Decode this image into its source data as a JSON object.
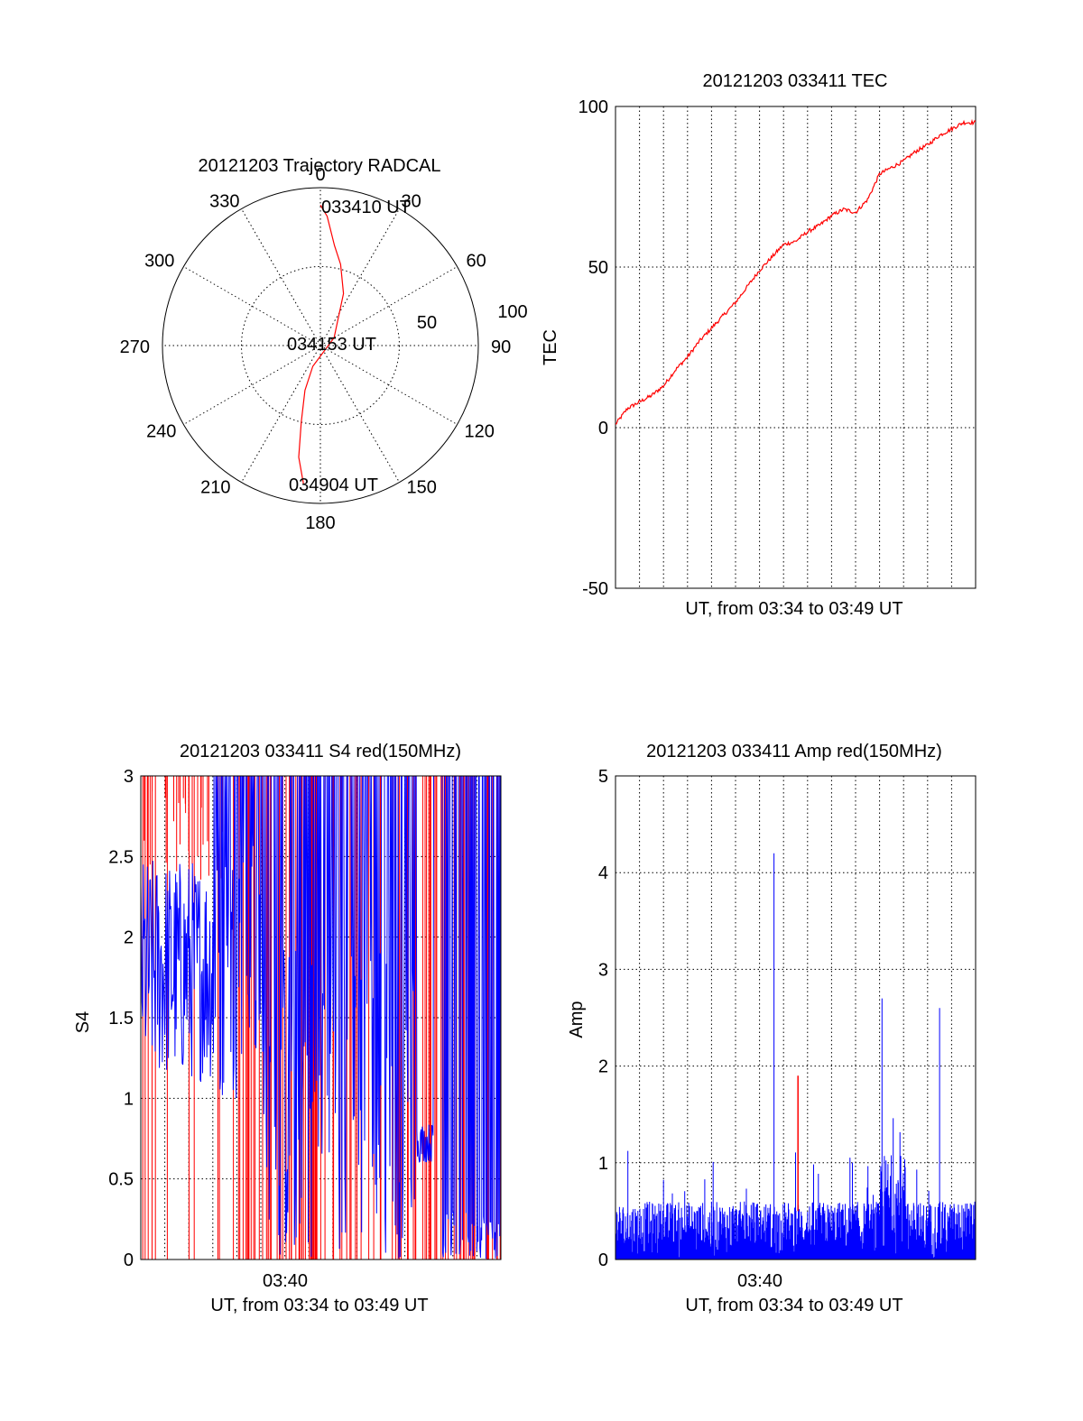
{
  "colors": {
    "trace_red": "#ff0000",
    "trace_blue": "#0000ff",
    "axis": "#000000"
  },
  "chart_data": [
    {
      "type": "polar",
      "title": "20121203 Trajectory RADCAL",
      "azimuth_labels": [
        "0",
        "30",
        "60",
        "90",
        "120",
        "150",
        "180",
        "210",
        "240",
        "270",
        "300",
        "330"
      ],
      "radial_labels": [
        "50",
        "100"
      ],
      "radial_range": [
        0,
        100
      ],
      "series": [
        {
          "color": "#ff0000",
          "points_az_dist": [
            [
              0,
              89
            ],
            [
              3,
              82
            ],
            [
              8,
              64
            ],
            [
              14,
              53
            ],
            [
              24,
              36
            ],
            [
              60,
              10
            ],
            [
              200,
              14
            ],
            [
              199,
              30
            ],
            [
              194,
              50
            ],
            [
              191,
              72
            ],
            [
              187,
              88
            ]
          ]
        }
      ],
      "annotations": [
        "033410 UT",
        "034153 UT",
        "034904 UT"
      ]
    },
    {
      "type": "line",
      "title": "20121203 033411 TEC",
      "xlabel": "UT, from 03:34 to 03:49 UT",
      "ylabel": "TEC",
      "xlim": [
        0,
        15
      ],
      "ylim": [
        -50,
        100
      ],
      "yticks": [
        "100",
        "50",
        "0",
        "-50"
      ],
      "grid": true,
      "series": [
        {
          "color": "#ff0000",
          "x": [
            0,
            0.5,
            1,
            1.5,
            2,
            2.5,
            3,
            3.5,
            4,
            4.5,
            5,
            5.5,
            6,
            6.5,
            7,
            7.5,
            8,
            8.5,
            9,
            9.5,
            10,
            10.5,
            11,
            11.5,
            12,
            12.5,
            13,
            13.5,
            14,
            14.5,
            15
          ],
          "y": [
            1,
            6,
            8,
            10,
            13,
            18,
            22,
            27,
            31,
            35,
            39,
            44,
            49,
            53,
            57,
            58,
            61,
            63,
            66,
            68,
            67,
            71,
            79,
            81,
            83,
            86,
            88,
            91,
            93,
            95,
            95
          ]
        }
      ]
    },
    {
      "type": "line",
      "title": "20121203 033411 S4 red(150MHz)",
      "xlabel": "UT, from 03:34 to 03:49 UT",
      "ylabel": "S4",
      "xlim": [
        0,
        15
      ],
      "ylim": [
        0,
        3
      ],
      "xticks": [
        "03:40"
      ],
      "yticks": [
        "3",
        "2.5",
        "2",
        "1.5",
        "1",
        "0.5",
        "0"
      ],
      "grid": true,
      "series": [
        {
          "color": "#ff0000",
          "x": [
            0,
            15
          ],
          "y": [
            3,
            0
          ]
        },
        {
          "color": "#0000ff",
          "x": [
            0,
            15
          ],
          "y": [
            1.5,
            0.7
          ]
        }
      ]
    },
    {
      "type": "line",
      "title": "20121203 033411 Amp red(150MHz)",
      "xlabel": "UT, from 03:34 to 03:49 UT",
      "ylabel": "Amp",
      "xlim": [
        0,
        15
      ],
      "ylim": [
        0,
        5
      ],
      "xticks": [
        "03:40"
      ],
      "yticks": [
        "5",
        "4",
        "3",
        "2",
        "1",
        "0"
      ],
      "grid": true,
      "series": [
        {
          "color": "#0000ff",
          "x": [
            6.6,
            11.1,
            13.5
          ],
          "y": [
            4.2,
            2.7,
            2.6
          ]
        },
        {
          "color": "#ff0000",
          "x": [
            7.6
          ],
          "y": [
            1.9
          ]
        }
      ]
    }
  ]
}
